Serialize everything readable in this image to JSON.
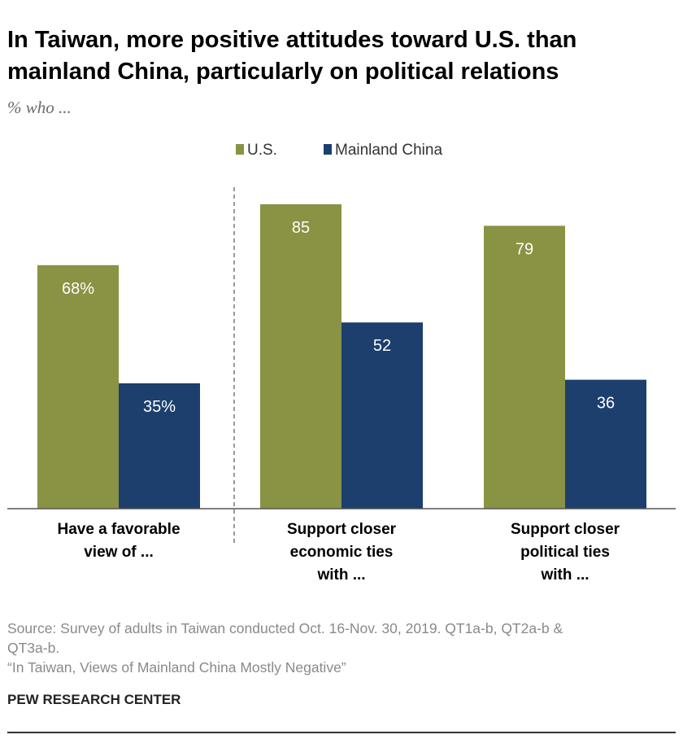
{
  "title_line1": "In Taiwan, more positive attitudes toward U.S. than",
  "title_line2": "mainland China, particularly on political relations",
  "subtitle": "% who ...",
  "source_line1": "Source: Survey of adults in Taiwan conducted Oct. 16-Nov. 30, 2019. QT1a-b, QT2a-b &",
  "source_line2": "QT3a-b.",
  "source_line3": "“In Taiwan, Views of Mainland China Mostly Negative”",
  "brand": "PEW RESEARCH CENTER",
  "colors": {
    "us": "#8a9243",
    "china": "#1c3f6e",
    "label_text": "#ffffff"
  },
  "chart_data": {
    "type": "bar",
    "categories": [
      [
        "Have a favorable",
        "view of ..."
      ],
      [
        "Support closer",
        "economic ties",
        "with ..."
      ],
      [
        "Support closer",
        "political ties",
        "with ..."
      ]
    ],
    "series": [
      {
        "name": "U.S.",
        "values": [
          68,
          85,
          79
        ],
        "labels": [
          "68%",
          "85",
          "79"
        ]
      },
      {
        "name": "Mainland China",
        "values": [
          35,
          52,
          36
        ],
        "labels": [
          "35%",
          "52",
          "36"
        ]
      }
    ],
    "ylim": [
      0,
      85
    ],
    "legend_position": "top-center",
    "grid": false
  }
}
